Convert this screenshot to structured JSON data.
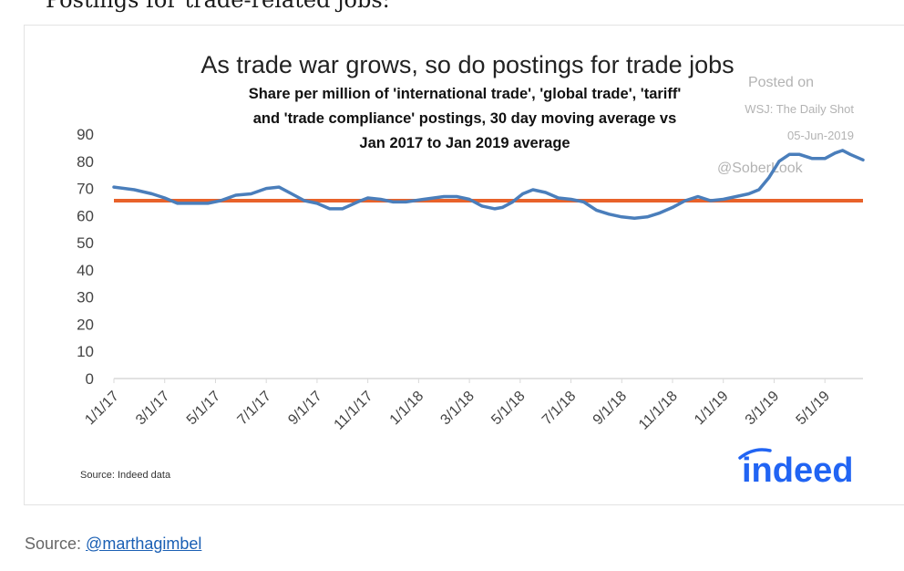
{
  "page": {
    "heading": "Postings for trade-related jobs:",
    "caption_prefix": "Source: ",
    "caption_link": "@marthagimbel"
  },
  "chart_data": {
    "type": "line",
    "title": "As trade war grows, so do postings for trade jobs",
    "subtitle_lines": [
      "Share per million of 'international trade', 'global trade', 'tariff'",
      "and 'trade compliance' postings, 30 day moving average vs",
      "Jan 2017 to Jan 2019 average"
    ],
    "ylim": [
      0,
      90
    ],
    "yticks": [
      0,
      10,
      20,
      30,
      40,
      50,
      60,
      70,
      80,
      90
    ],
    "x_range_months": [
      0,
      29.5
    ],
    "xtick_labels": [
      "1/1/17",
      "3/1/17",
      "5/1/17",
      "7/1/17",
      "9/1/17",
      "11/1/17",
      "1/1/18",
      "3/1/18",
      "5/1/18",
      "7/1/18",
      "9/1/18",
      "11/1/18",
      "1/1/19",
      "3/1/19",
      "5/1/19"
    ],
    "series": [
      {
        "name": "30 day moving average",
        "color": "#4a7ebb",
        "points": [
          [
            0.0,
            70.5
          ],
          [
            0.8,
            69.5
          ],
          [
            1.5,
            68.0
          ],
          [
            2.0,
            66.5
          ],
          [
            2.5,
            64.5
          ],
          [
            3.0,
            64.5
          ],
          [
            3.7,
            64.5
          ],
          [
            4.2,
            65.5
          ],
          [
            4.8,
            67.5
          ],
          [
            5.4,
            68.0
          ],
          [
            6.0,
            70.0
          ],
          [
            6.5,
            70.5
          ],
          [
            7.0,
            68.0
          ],
          [
            7.5,
            65.5
          ],
          [
            8.0,
            64.5
          ],
          [
            8.5,
            62.5
          ],
          [
            9.0,
            62.5
          ],
          [
            9.6,
            65.0
          ],
          [
            10.0,
            66.5
          ],
          [
            10.5,
            66.0
          ],
          [
            11.0,
            65.0
          ],
          [
            11.5,
            65.0
          ],
          [
            12.2,
            66.0
          ],
          [
            12.6,
            66.5
          ],
          [
            13.0,
            67.0
          ],
          [
            13.5,
            67.0
          ],
          [
            14.0,
            66.0
          ],
          [
            14.5,
            63.5
          ],
          [
            15.0,
            62.5
          ],
          [
            15.3,
            63.0
          ],
          [
            15.7,
            65.0
          ],
          [
            16.1,
            68.0
          ],
          [
            16.5,
            69.5
          ],
          [
            17.0,
            68.5
          ],
          [
            17.5,
            66.5
          ],
          [
            18.0,
            66.0
          ],
          [
            18.5,
            65.0
          ],
          [
            19.0,
            62.0
          ],
          [
            19.5,
            60.5
          ],
          [
            20.0,
            59.5
          ],
          [
            20.5,
            59.0
          ],
          [
            21.0,
            59.5
          ],
          [
            21.5,
            61.0
          ],
          [
            22.0,
            63.0
          ],
          [
            22.5,
            65.5
          ],
          [
            23.0,
            67.0
          ],
          [
            23.5,
            65.5
          ],
          [
            24.0,
            66.0
          ],
          [
            24.5,
            67.0
          ],
          [
            25.0,
            68.0
          ],
          [
            25.4,
            69.5
          ],
          [
            25.8,
            74.0
          ],
          [
            26.2,
            80.0
          ],
          [
            26.6,
            82.5
          ],
          [
            27.0,
            82.5
          ],
          [
            27.5,
            81.0
          ],
          [
            28.0,
            81.0
          ],
          [
            28.4,
            83.0
          ],
          [
            28.7,
            84.0
          ],
          [
            29.0,
            82.5
          ],
          [
            29.5,
            80.5
          ]
        ]
      },
      {
        "name": "Jan 2017 to Jan 2019 average",
        "color": "#e8622a",
        "value": 65.5
      }
    ],
    "watermark": {
      "line1": "Posted on",
      "line2": "WSJ: The Daily Shot",
      "line3": "05-Jun-2019",
      "line4": "@SoberLook"
    },
    "source_note": "Source: Indeed data",
    "logo_text": "indeed",
    "colors": {
      "axis": "#d9d9d9",
      "text": "#222222",
      "label": "#444444"
    }
  }
}
